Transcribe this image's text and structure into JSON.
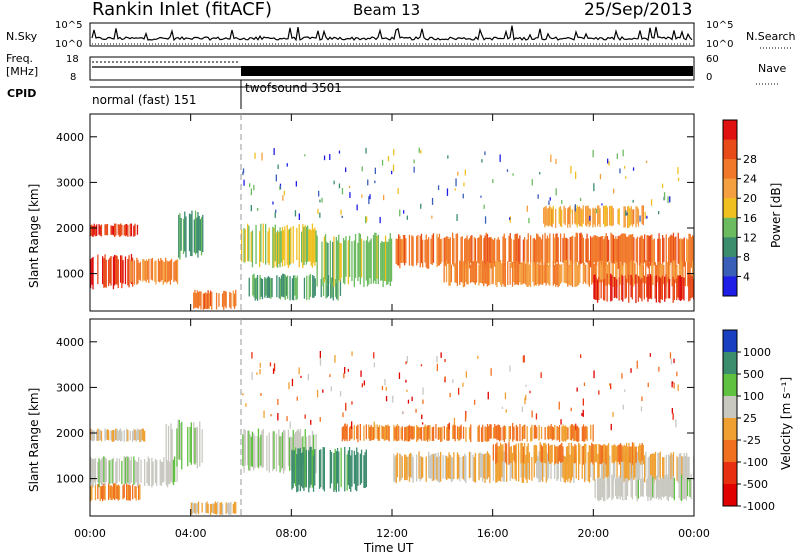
{
  "header": {
    "title": "Rankin Inlet (fitACF)",
    "beam": "Beam 13",
    "date": "25/Sep/2013"
  },
  "noise_panel": {
    "left_label": "N.Sky",
    "right_label": "N.Search",
    "left_ticks": [
      "10^5",
      "10^0"
    ],
    "right_ticks": [
      "10^5",
      "10^0"
    ]
  },
  "freq_panel": {
    "left_label_line1": "Freq.",
    "left_label_line2": "[MHz]",
    "right_label": "Nave",
    "left_ticks": [
      "18",
      "8"
    ],
    "right_ticks": [
      "60",
      "0"
    ]
  },
  "cpid": {
    "label": "CPID",
    "modes": [
      {
        "name": "normal (fast) 151",
        "start_hour": 0,
        "end_hour": 6
      },
      {
        "name": "twofsound 3501",
        "start_hour": 6,
        "end_hour": 24
      }
    ]
  },
  "axes": {
    "ylabel": "Slant Range [km]",
    "xlabel": "Time UT",
    "xticks": [
      "00:00",
      "04:00",
      "08:00",
      "12:00",
      "16:00",
      "20:00",
      "00:00"
    ],
    "yticks": [
      "1000",
      "2000",
      "3000",
      "4000"
    ]
  },
  "power_colorbar": {
    "label": "Power [dB]",
    "ticks": [
      "4",
      "8",
      "12",
      "16",
      "20",
      "24",
      "28"
    ],
    "colors": [
      "#1e1ee6",
      "#3a5fb8",
      "#3c8c6e",
      "#6dbb60",
      "#f0c020",
      "#f5a040",
      "#f07828",
      "#e84a18",
      "#e01010"
    ]
  },
  "velocity_colorbar": {
    "label": "Velocity [m s⁻¹]",
    "ticks": [
      "1000",
      "500",
      "100",
      "25",
      "-25",
      "-100",
      "-500",
      "-1000"
    ],
    "colors": [
      "#1a3fc0",
      "#3c8c6e",
      "#60c040",
      "#c8c8c0",
      "#f0a030",
      "#f07020",
      "#e83010",
      "#e00000"
    ]
  },
  "chart_data": [
    {
      "type": "heatmap",
      "title": "Power",
      "x": "time (hours UT)",
      "y": "slant range (km)",
      "xlim": [
        0,
        24
      ],
      "ylim": [
        180,
        4500
      ],
      "zlim": [
        0,
        30
      ],
      "ylabel": "Slant Range [km]",
      "xlabel": "Time UT",
      "colorbar_label": "Power [dB]",
      "regions": [
        {
          "t": [
            0.0,
            2.0
          ],
          "r": [
            1800,
            2100
          ],
          "val": 26
        },
        {
          "t": [
            0.0,
            1.8
          ],
          "r": [
            650,
            1450
          ],
          "val": 27
        },
        {
          "t": [
            1.5,
            3.5
          ],
          "r": [
            750,
            1350
          ],
          "val": 20
        },
        {
          "t": [
            3.5,
            4.5
          ],
          "r": [
            1300,
            2400
          ],
          "val": 10
        },
        {
          "t": [
            4.0,
            5.8
          ],
          "r": [
            200,
            650
          ],
          "val": 22
        },
        {
          "t": [
            6.0,
            9.0
          ],
          "r": [
            1100,
            2100
          ],
          "val": 14
        },
        {
          "t": [
            6.3,
            10.0
          ],
          "r": [
            400,
            1000
          ],
          "val": 10
        },
        {
          "t": [
            9.0,
            12.0
          ],
          "r": [
            700,
            1900
          ],
          "val": 12
        },
        {
          "t": [
            12.0,
            24.0
          ],
          "r": [
            1100,
            1900
          ],
          "val": 22
        },
        {
          "t": [
            14.0,
            24.0
          ],
          "r": [
            700,
            1300
          ],
          "val": 20
        },
        {
          "t": [
            20.0,
            24.0
          ],
          "r": [
            350,
            1000
          ],
          "val": 26
        },
        {
          "t": [
            18.0,
            22.0
          ],
          "r": [
            2000,
            2500
          ],
          "val": 18
        }
      ]
    },
    {
      "type": "heatmap",
      "title": "Velocity",
      "x": "time (hours UT)",
      "y": "slant range (km)",
      "xlim": [
        0,
        24
      ],
      "ylim": [
        180,
        4500
      ],
      "zlim": [
        -1000,
        1000
      ],
      "ylabel": "Slant Range [km]",
      "xlabel": "Time UT",
      "colorbar_label": "Velocity [m s⁻¹]",
      "regions": [
        {
          "t": [
            0.0,
            2.2
          ],
          "r": [
            1800,
            2100
          ],
          "val": 0
        },
        {
          "t": [
            0.0,
            3.5
          ],
          "r": [
            800,
            1500
          ],
          "val": 150
        },
        {
          "t": [
            0.0,
            2.0
          ],
          "r": [
            500,
            900
          ],
          "val": -300
        },
        {
          "t": [
            3.0,
            4.5
          ],
          "r": [
            1200,
            2300
          ],
          "val": 200
        },
        {
          "t": [
            4.0,
            5.8
          ],
          "r": [
            200,
            500
          ],
          "val": 0
        },
        {
          "t": [
            6.0,
            9.0
          ],
          "r": [
            1100,
            2100
          ],
          "val": 200
        },
        {
          "t": [
            8.0,
            11.0
          ],
          "r": [
            700,
            1700
          ],
          "val": 600
        },
        {
          "t": [
            10.0,
            20.0
          ],
          "r": [
            1800,
            2200
          ],
          "val": -300
        },
        {
          "t": [
            12.0,
            24.0
          ],
          "r": [
            900,
            1600
          ],
          "val": 0
        },
        {
          "t": [
            16.0,
            22.0
          ],
          "r": [
            1300,
            1800
          ],
          "val": -200
        },
        {
          "t": [
            20.0,
            24.0
          ],
          "r": [
            500,
            1100
          ],
          "val": 150
        }
      ]
    }
  ]
}
